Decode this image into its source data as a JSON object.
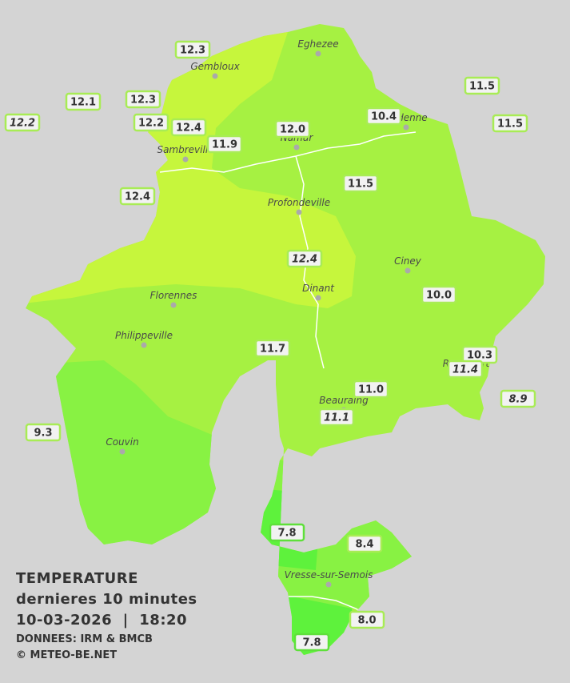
{
  "legend": {
    "title": "TEMPERATURE",
    "subtitle": "dernieres 10 minutes",
    "datetime": "10-03-2026  |  18:20",
    "source": "DONNEES: IRM & BMCB",
    "copyright": "© METEO-BE.NET"
  },
  "cities": [
    "Eghezee",
    "Gembloux",
    "Andenne",
    "Namur",
    "Sambreville",
    "Profondeville",
    "Ciney",
    "Dinant",
    "Florennes",
    "Philippeville",
    "Beauraing",
    "Rochefort",
    "Couvin",
    "Vresse-sur-Semois"
  ],
  "stations": [
    "12.3",
    "12.1",
    "12.3",
    "12.2",
    "12.2",
    "12.4",
    "11.9",
    "12.0",
    "10.4",
    "11.5",
    "11.5",
    "12.4",
    "11.5",
    "12.4",
    "10.0",
    "11.7",
    "10.3",
    "11.4",
    "11.0",
    "11.1",
    "8.9",
    "9.3",
    "7.8",
    "8.4",
    "8.0",
    "7.8"
  ]
}
